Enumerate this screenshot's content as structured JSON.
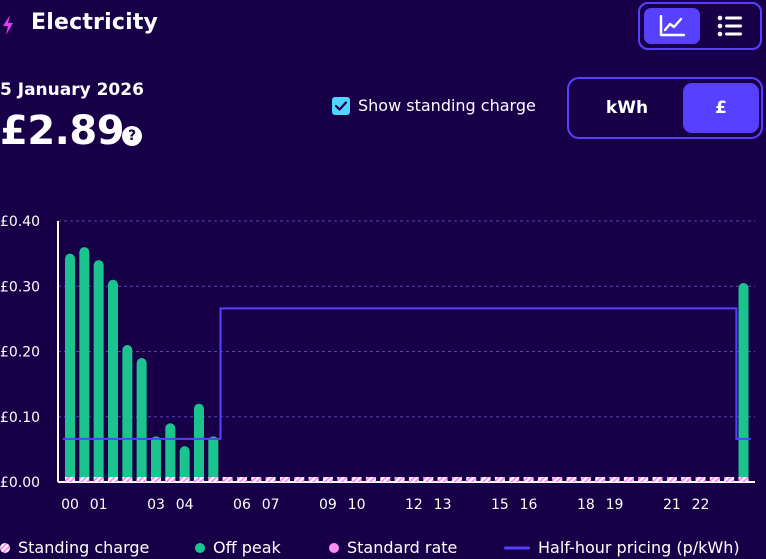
{
  "header": {
    "title": "Electricity",
    "view_toggle": {
      "options": [
        "chart-view",
        "list-view"
      ],
      "selected": "chart-view"
    }
  },
  "summary": {
    "date": "5 January 2026",
    "total": "£2.89",
    "help_label": "?"
  },
  "standing_charge": {
    "label": "Show standing charge",
    "checked": true
  },
  "unit_toggle": {
    "options": [
      "kWh",
      "£"
    ],
    "selected": "£"
  },
  "colors": {
    "background": "#180048",
    "accent": "#5840ff",
    "off_peak": "#1bc48e",
    "standard_rate": "#ff8df0",
    "standing_charge": "#ffffff",
    "checkbox": "#4fd5ff",
    "bolt": "#e83cf4"
  },
  "legend": [
    {
      "label": "Standing charge",
      "marker": "standing-charge-marker"
    },
    {
      "label": "Off peak",
      "marker": "off-peak-marker"
    },
    {
      "label": "Standard rate",
      "marker": "standard-rate-marker"
    },
    {
      "label": "Half-hour pricing (p/kWh)",
      "marker": "pricing-line-marker"
    }
  ],
  "chart_data": {
    "type": "bar",
    "x_tick_labels": [
      "00",
      "01",
      "03",
      "04",
      "06",
      "07",
      "09",
      "10",
      "12",
      "13",
      "15",
      "16",
      "18",
      "19",
      "21",
      "22"
    ],
    "y_tick_labels": [
      "£0.00",
      "£0.10",
      "£0.20",
      "£0.30",
      "£0.40"
    ],
    "ylim": [
      0,
      0.4
    ],
    "grid": true,
    "series": [
      {
        "name": "Off peak",
        "values": [
          0.35,
          0.36,
          0.34,
          0.31,
          0.21,
          0.19,
          0.07,
          0.09,
          0.055,
          0.12,
          0.07,
          0,
          0,
          0,
          0,
          0,
          0,
          0,
          0,
          0,
          0,
          0,
          0,
          0,
          0,
          0,
          0,
          0,
          0,
          0,
          0,
          0,
          0,
          0,
          0,
          0,
          0,
          0,
          0,
          0,
          0,
          0,
          0,
          0,
          0,
          0,
          0,
          0.305
        ]
      },
      {
        "name": "Standing charge",
        "values": [
          0.004,
          0.004,
          0.004,
          0.004,
          0.004,
          0.004,
          0.004,
          0.004,
          0.004,
          0.004,
          0.004,
          0.004,
          0.004,
          0.004,
          0.004,
          0.004,
          0.004,
          0.004,
          0.004,
          0.004,
          0.004,
          0.004,
          0.004,
          0.004,
          0.004,
          0.004,
          0.004,
          0.004,
          0.004,
          0.004,
          0.004,
          0.004,
          0.004,
          0.004,
          0.004,
          0.004,
          0.004,
          0.004,
          0.004,
          0.004,
          0.004,
          0.004,
          0.004,
          0.004,
          0.004,
          0.004,
          0.004,
          0.004
        ]
      },
      {
        "name": "Half-hour pricing (p/kWh)",
        "type": "step",
        "values": [
          0.066,
          0.066,
          0.066,
          0.066,
          0.066,
          0.066,
          0.066,
          0.066,
          0.066,
          0.066,
          0.066,
          0.266,
          0.266,
          0.266,
          0.266,
          0.266,
          0.266,
          0.266,
          0.266,
          0.266,
          0.266,
          0.266,
          0.266,
          0.266,
          0.266,
          0.266,
          0.266,
          0.266,
          0.266,
          0.266,
          0.266,
          0.266,
          0.266,
          0.266,
          0.266,
          0.266,
          0.266,
          0.266,
          0.266,
          0.266,
          0.266,
          0.266,
          0.266,
          0.266,
          0.266,
          0.266,
          0.266,
          0.066
        ]
      }
    ]
  }
}
